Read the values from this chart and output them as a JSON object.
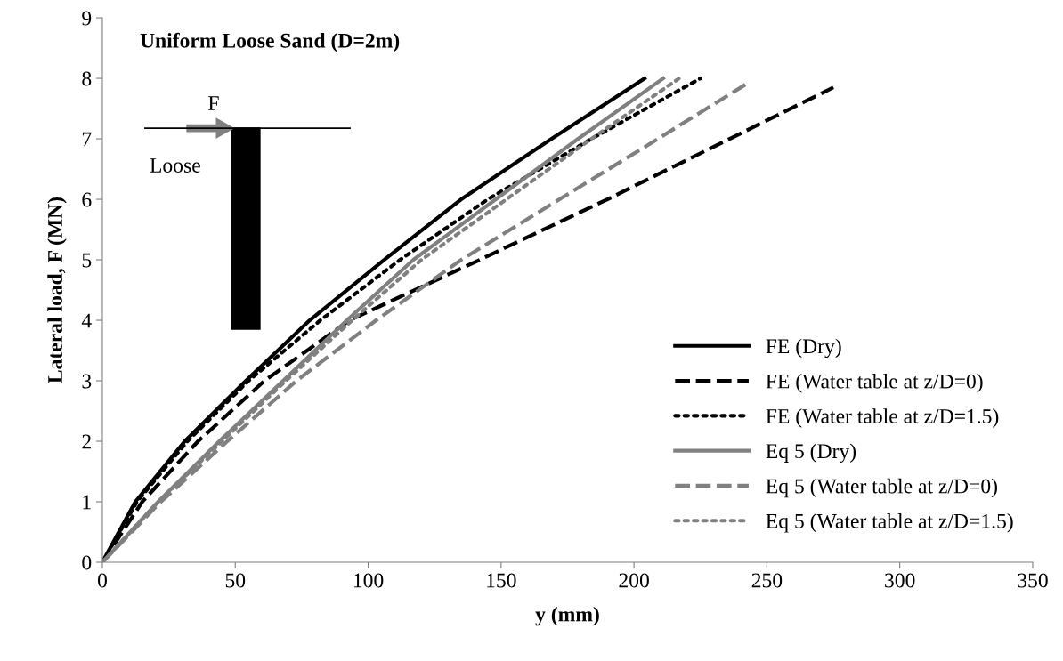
{
  "chart_data": {
    "type": "line",
    "title": "Uniform Loose Sand (D=2m)",
    "xlabel": "y (mm)",
    "ylabel": "Lateral load, F (MN)",
    "annotations": [
      "F",
      "Loose"
    ],
    "xlim": [
      0,
      350
    ],
    "xticks": [
      0,
      50,
      100,
      150,
      200,
      250,
      300,
      350
    ],
    "ylim": [
      0,
      9
    ],
    "yticks": [
      0,
      1,
      2,
      3,
      4,
      5,
      6,
      7,
      8,
      9
    ],
    "grid": false,
    "legend": "bottom right",
    "marker": "none",
    "series": [
      {
        "name": "FE (Dry)",
        "color": "#000000",
        "line_style": "solid",
        "x": [
          0,
          12.4,
          31,
          54,
          78,
          106,
          135,
          169,
          204
        ],
        "values": [
          0,
          1,
          2,
          3,
          4,
          5,
          6,
          7,
          8
        ]
      },
      {
        "name": "FE (Water table at z/D=0)",
        "color": "#000000",
        "line_style": "dashed",
        "x": [
          0,
          15,
          36,
          61,
          93,
          142,
          190,
          236,
          275
        ],
        "values": [
          0,
          1,
          2,
          3,
          4,
          5,
          6,
          7,
          7.85
        ]
      },
      {
        "name": "FE (Water table at z/D=1.5)",
        "color": "#000000",
        "line_style": "dotted",
        "x": [
          0,
          13,
          32,
          55,
          82,
          112,
          145,
          184,
          225
        ],
        "values": [
          0,
          1,
          2,
          3,
          4,
          5,
          6,
          7,
          8
        ]
      },
      {
        "name": "Eq 5 (Dry)",
        "color": "#808080",
        "line_style": "solid",
        "x": [
          0,
          21,
          44,
          68,
          92,
          117,
          148,
          179,
          211
        ],
        "values": [
          0,
          1,
          2,
          3,
          4,
          5,
          6,
          7,
          8
        ]
      },
      {
        "name": "Eq 5 (Water table at z/D=0)",
        "color": "#808080",
        "line_style": "dashed",
        "x": [
          0,
          22,
          47,
          73,
          103,
          135,
          172,
          209,
          242
        ],
        "values": [
          0,
          1,
          2,
          3,
          4,
          5,
          6,
          7,
          7.9
        ]
      },
      {
        "name": "Eq 5 (Water table at z/D=1.5)",
        "color": "#808080",
        "line_style": "dotted",
        "x": [
          0,
          21,
          45,
          69,
          94,
          120,
          152,
          184,
          217
        ],
        "values": [
          0,
          1,
          2,
          3,
          4,
          5,
          6,
          7,
          8
        ]
      }
    ]
  }
}
